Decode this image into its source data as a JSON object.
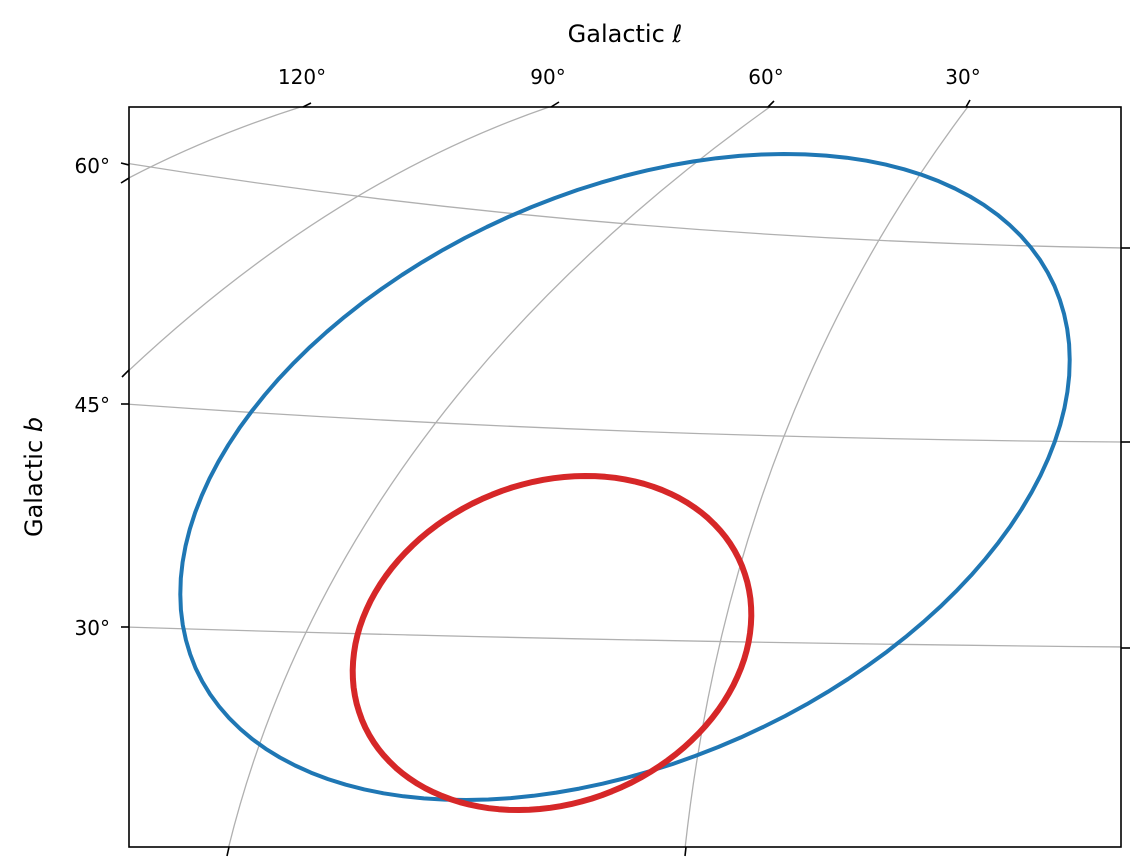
{
  "chart_data": {
    "type": "line",
    "projection": "galactic sky projection with curved coordinate grid",
    "grid": true,
    "xlabel": "Galactic ℓ",
    "ylabel": "Galactic b",
    "ylabel_italic_part": "b",
    "xlabel_italic_part": "ℓ",
    "x_ticks": [
      "120°",
      "90°",
      "60°",
      "30°"
    ],
    "y_ticks": [
      "60°",
      "45°",
      "30°"
    ],
    "series": [
      {
        "color": "#1f77b4",
        "shape": "ellipse",
        "points": [
          [
            1.0,
            0.0
          ],
          [
            0.95,
            0.309
          ],
          [
            0.809,
            0.588
          ],
          [
            0.588,
            0.809
          ],
          [
            0.309,
            0.951
          ],
          [
            0.0,
            1.0
          ],
          [
            -0.309,
            0.951
          ],
          [
            -0.588,
            0.809
          ],
          [
            -0.809,
            0.588
          ],
          [
            -0.951,
            0.309
          ],
          [
            -1.0,
            0.0
          ],
          [
            -0.951,
            -0.309
          ],
          [
            -0.809,
            -0.588
          ],
          [
            -0.588,
            -0.809
          ],
          [
            -0.309,
            -0.951
          ],
          [
            0.0,
            -1.0
          ],
          [
            0.309,
            -0.951
          ],
          [
            0.588,
            -0.809
          ],
          [
            0.809,
            -0.588
          ],
          [
            0.951,
            -0.309
          ]
        ]
      },
      {
        "color": "#d62728",
        "shape": "ellipse",
        "points": [
          [
            1.0,
            0.0
          ],
          [
            0.95,
            0.309
          ],
          [
            0.809,
            0.588
          ],
          [
            0.588,
            0.809
          ],
          [
            0.309,
            0.951
          ],
          [
            0.0,
            1.0
          ],
          [
            -0.309,
            0.951
          ],
          [
            -0.588,
            0.809
          ],
          [
            -0.809,
            0.588
          ],
          [
            -0.951,
            0.309
          ],
          [
            -1.0,
            0.0
          ],
          [
            -0.951,
            -0.309
          ],
          [
            -0.809,
            -0.588
          ],
          [
            -0.588,
            -0.809
          ],
          [
            -0.309,
            -0.951
          ],
          [
            0.0,
            -1.0
          ],
          [
            0.309,
            -0.951
          ],
          [
            0.588,
            -0.809
          ],
          [
            0.809,
            -0.588
          ],
          [
            0.951,
            -0.309
          ]
        ]
      }
    ],
    "colors": {
      "grid": "#b0b0b0",
      "frame": "#000000"
    }
  }
}
